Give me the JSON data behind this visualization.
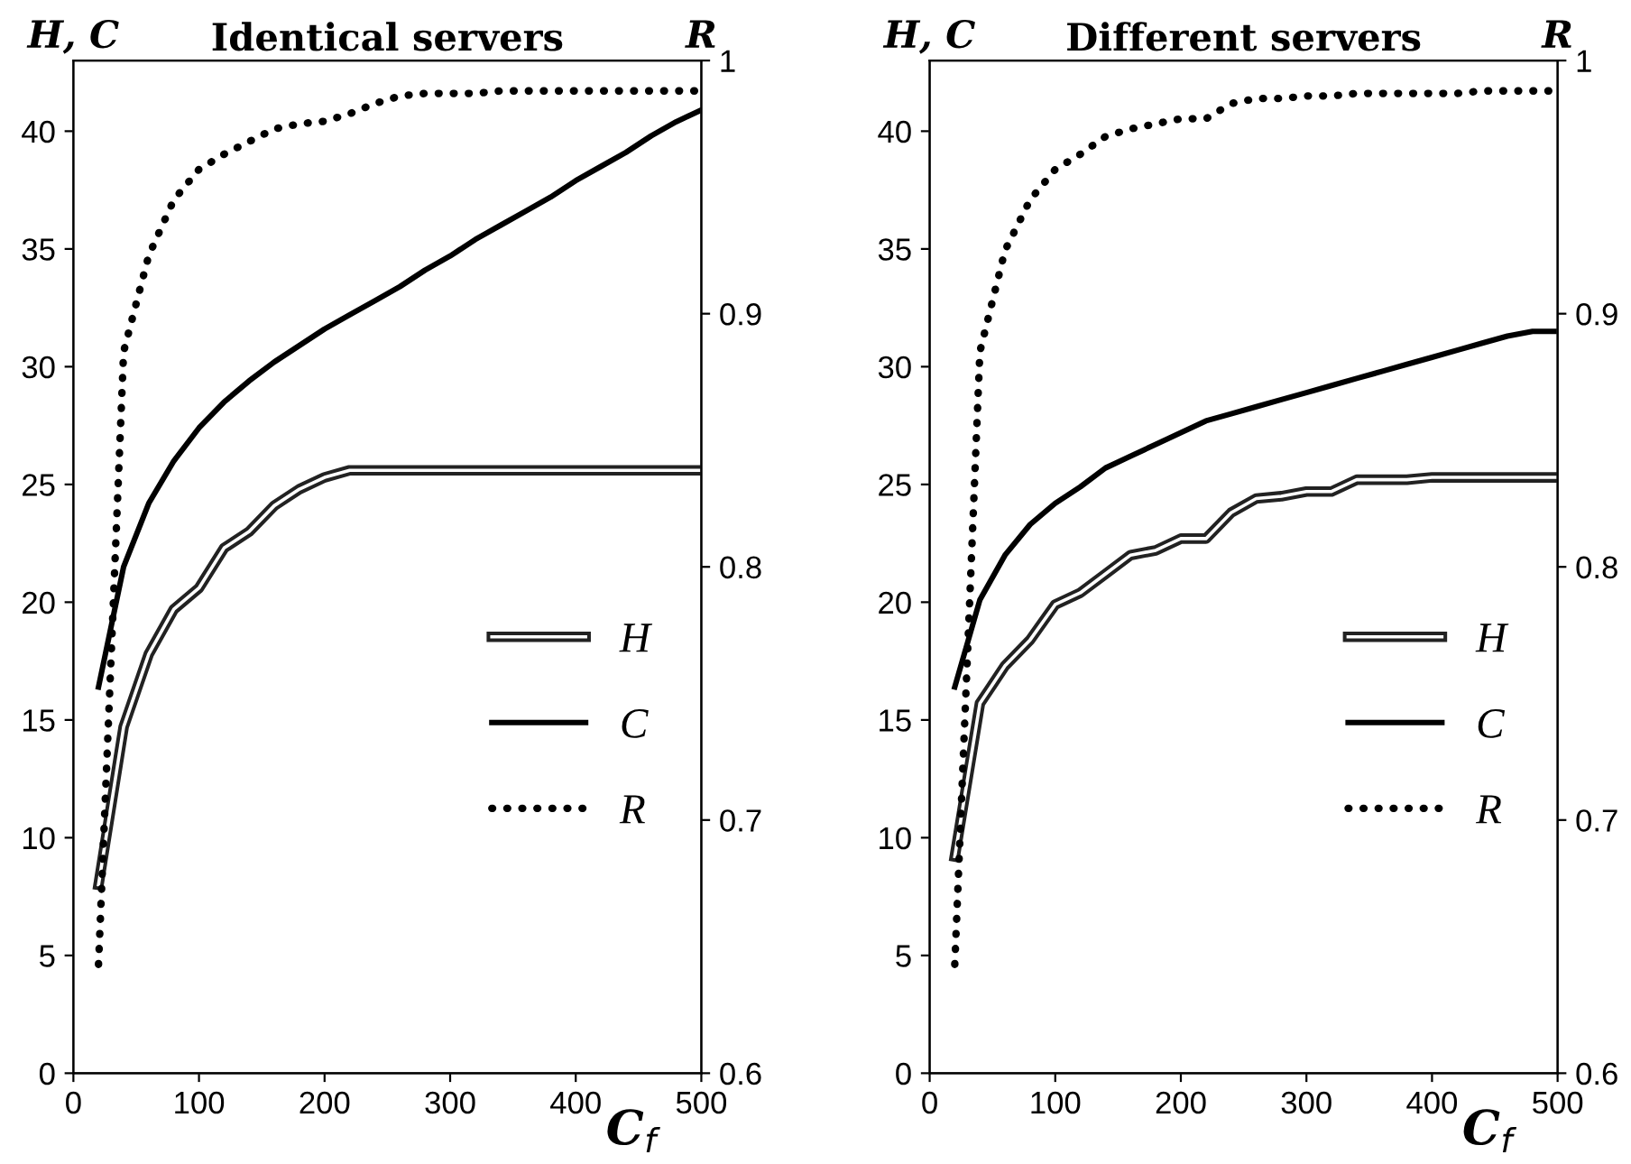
{
  "chart_data": [
    {
      "type": "line",
      "title": "Identical servers",
      "xlabel": "C$_{f}$",
      "ylabel": "H, C",
      "y2label": "R",
      "x": [
        20,
        40,
        60,
        80,
        100,
        120,
        140,
        160,
        180,
        200,
        220,
        240,
        260,
        280,
        300,
        320,
        340,
        360,
        380,
        400,
        420,
        440,
        460,
        480,
        500
      ],
      "series": [
        {
          "name": "H",
          "color": "#ffffff",
          "line_style": "solid",
          "values": [
            8,
            14.7,
            17.8,
            19.7,
            20.6,
            22.3,
            23,
            24.1,
            24.8,
            25.3,
            25.6,
            25.6,
            25.6,
            25.6,
            25.6,
            25.6,
            25.6,
            25.6,
            25.6,
            25.6,
            25.6,
            25.6,
            25.6,
            25.6,
            25.6
          ]
        },
        {
          "name": "C",
          "color": "#000000",
          "line_style": "solid",
          "values": [
            16.4,
            21.5,
            24.2,
            26,
            27.4,
            28.5,
            29.4,
            30.2,
            30.9,
            31.6,
            32.2,
            32.8,
            33.4,
            34.1,
            34.7,
            35.4,
            36,
            36.6,
            37.2,
            37.9,
            38.5,
            39.1,
            39.8,
            40.4,
            40.9
          ]
        },
        {
          "name": "R",
          "color": "#000000",
          "line_style": "dotted",
          "axis": "y2",
          "values": [
            0.643,
            0.885,
            0.923,
            0.945,
            0.957,
            0.963,
            0.968,
            0.973,
            0.975,
            0.976,
            0.979,
            0.983,
            0.986,
            0.987,
            0.987,
            0.987,
            0.988,
            0.988,
            0.988,
            0.988,
            0.988,
            0.988,
            0.988,
            0.988,
            0.988
          ]
        }
      ],
      "xlim": [
        0,
        500
      ],
      "xticks": [
        0,
        100,
        200,
        300,
        400,
        500
      ],
      "ylim": [
        0,
        43
      ],
      "yticks": [
        0,
        5,
        10,
        15,
        20,
        25,
        30,
        35,
        40
      ],
      "y2lim": [
        0.6,
        1
      ],
      "y2ticks": [
        0.6,
        0.7,
        0.8,
        0.9,
        1
      ],
      "legend": "lower right",
      "grid": false
    },
    {
      "type": "line",
      "title": "Different servers",
      "xlabel": "C$_{f}$",
      "ylabel": "H, C",
      "y2label": "R",
      "x": [
        20,
        40,
        60,
        80,
        100,
        120,
        140,
        160,
        180,
        200,
        220,
        240,
        260,
        280,
        300,
        320,
        340,
        360,
        380,
        400,
        420,
        440,
        460,
        480,
        500
      ],
      "series": [
        {
          "name": "H",
          "color": "#ffffff",
          "line_style": "solid",
          "values": [
            9.2,
            15.7,
            17.3,
            18.4,
            19.9,
            20.4,
            21.2,
            22,
            22.2,
            22.7,
            22.7,
            23.8,
            24.4,
            24.5,
            24.7,
            24.7,
            25.2,
            25.2,
            25.2,
            25.3,
            25.3,
            25.3,
            25.3,
            25.3,
            25.3
          ]
        },
        {
          "name": "C",
          "color": "#000000",
          "line_style": "solid",
          "values": [
            16.4,
            20.1,
            22,
            23.3,
            24.2,
            24.9,
            25.7,
            26.2,
            26.7,
            27.2,
            27.7,
            28,
            28.3,
            28.6,
            28.9,
            29.2,
            29.5,
            29.8,
            30.1,
            30.4,
            30.7,
            31,
            31.3,
            31.5,
            31.5
          ]
        },
        {
          "name": "R",
          "color": "#000000",
          "line_style": "dotted",
          "axis": "y2",
          "values": [
            0.643,
            0.885,
            0.925,
            0.945,
            0.957,
            0.963,
            0.97,
            0.973,
            0.975,
            0.977,
            0.977,
            0.983,
            0.985,
            0.985,
            0.986,
            0.986,
            0.987,
            0.987,
            0.987,
            0.987,
            0.987,
            0.988,
            0.988,
            0.988,
            0.988
          ]
        }
      ],
      "xlim": [
        0,
        500
      ],
      "xticks": [
        0,
        100,
        200,
        300,
        400,
        500
      ],
      "ylim": [
        0,
        43
      ],
      "yticks": [
        0,
        5,
        10,
        15,
        20,
        25,
        30,
        35,
        40
      ],
      "y2lim": [
        0.6,
        1
      ],
      "y2ticks": [
        0.6,
        0.7,
        0.8,
        0.9,
        1
      ],
      "legend": "lower right",
      "grid": false
    }
  ]
}
